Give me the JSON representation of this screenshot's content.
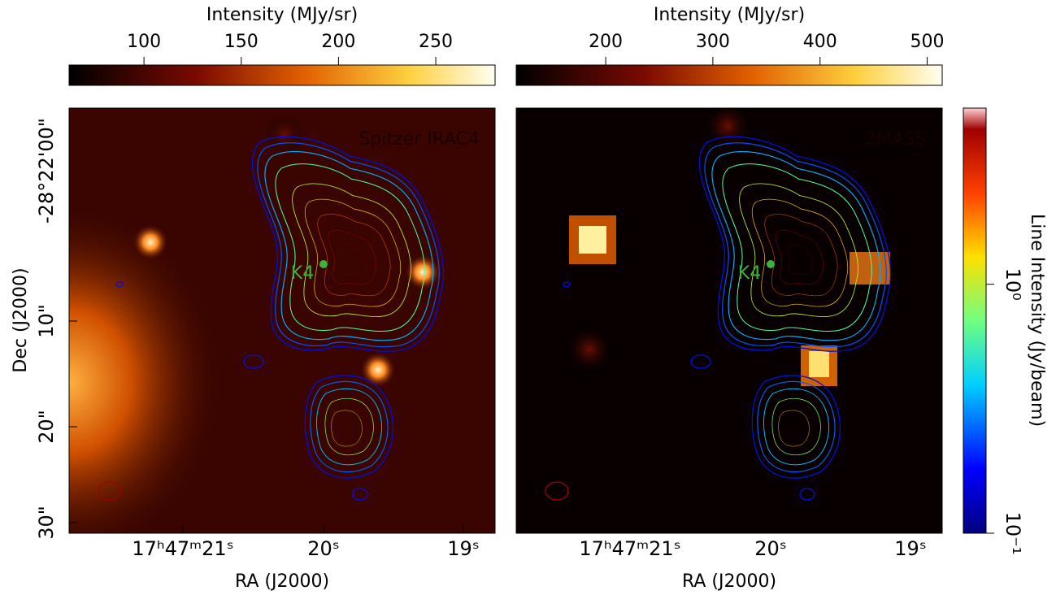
{
  "panels": [
    {
      "label": "Spitzer IRAC4",
      "source": "K4",
      "x_label": "RA (J2000)",
      "x_ticks": [
        "17ʰ47ᵐ21ˢ",
        "20ˢ",
        "19ˢ"
      ],
      "y_label": "Dec (J2000)",
      "y_ticks": [
        "-28°22'00\"",
        "10\"",
        "20\"",
        "30\""
      ],
      "colorbar": {
        "label": "Intensity (MJy/sr)",
        "lim": [
          61.5,
          280.5
        ],
        "ticks": [
          100,
          150,
          200,
          250
        ]
      }
    },
    {
      "label": "2MASS",
      "source": "K4",
      "x_label": "RA (J2000)",
      "x_ticks": [
        "17ʰ47ᵐ21ˢ",
        "20ˢ",
        "19ˢ"
      ],
      "colorbar": {
        "label": "Intensity (MJy/sr)",
        "lim": [
          116.5,
          514
        ],
        "ticks": [
          200,
          300,
          400,
          500
        ]
      }
    }
  ],
  "line_colorbar": {
    "label": "Line Intensity (Jy/beam)",
    "scale": "log",
    "lim": [
      0.1,
      5.1
    ],
    "ticks": [
      {
        "value": 0.1,
        "label": "10⁻¹"
      },
      {
        "value": 1,
        "label": "10⁰"
      }
    ]
  }
}
